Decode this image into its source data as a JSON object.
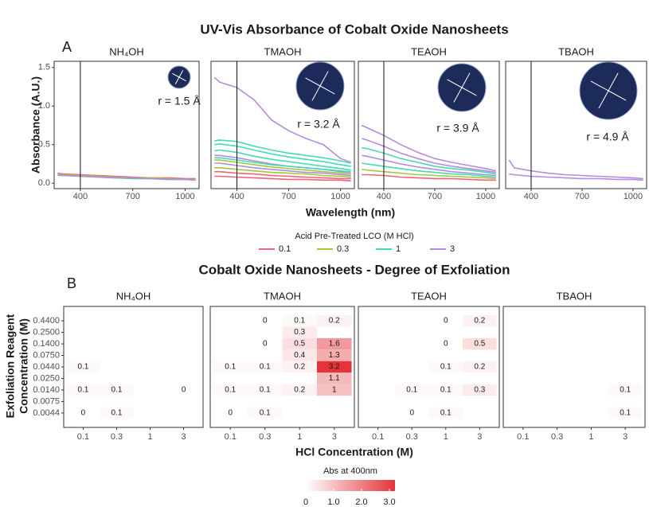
{
  "chart_data": [
    {
      "type": "line",
      "panel_label": "A",
      "title": "UV-Vis Absorbance of Cobalt Oxide Nanosheets",
      "x_label": "Wavelength (nm)",
      "y_label": "Absorbance (A.U.)",
      "xlim": [
        250,
        1080
      ],
      "xticks": [
        400,
        700,
        1000
      ],
      "ylim": [
        -0.07,
        1.58
      ],
      "yticks": [
        {
          "value": 0,
          "label": "0.0"
        },
        {
          "value": 0.5,
          "label": "0.5"
        },
        {
          "value": 1,
          "label": "1.0"
        },
        {
          "value": 1.5,
          "label": "1.5"
        }
      ],
      "vline": 400,
      "x": [
        270,
        300,
        400,
        500,
        600,
        700,
        800,
        900,
        1000,
        1060
      ],
      "legend": {
        "title": "Acid Pre-Treated LCO (M HCl)",
        "entries": [
          {
            "name": "0.1",
            "color": "#f0637a"
          },
          {
            "name": "0.3",
            "color": "#a3c83a"
          },
          {
            "name": "1",
            "color": "#45d9b8"
          },
          {
            "name": "3",
            "color": "#b48be0"
          }
        ]
      },
      "facets": [
        {
          "name": "NH₄OH",
          "annotation": "r = 1.5 Å",
          "series": [
            {
              "group": 0,
              "values": [
                0.13,
                0.12,
                0.11,
                0.1,
                0.09,
                0.08,
                0.07,
                0.07,
                0.06,
                0.06
              ]
            },
            {
              "group": 1,
              "values": [
                0.12,
                0.11,
                0.1,
                0.09,
                0.08,
                0.07,
                0.07,
                0.06,
                0.05,
                0.05
              ]
            },
            {
              "group": 2,
              "values": [
                0.1,
                0.1,
                0.09,
                0.08,
                0.07,
                0.06,
                0.06,
                0.05,
                0.05,
                0.04
              ]
            },
            {
              "group": 3,
              "values": [
                0.11,
                0.1,
                0.09,
                0.08,
                0.07,
                0.07,
                0.06,
                0.05,
                0.05,
                0.04
              ]
            }
          ]
        },
        {
          "name": "TMAOH",
          "annotation": "r = 3.2 Å",
          "series": [
            {
              "group": 3,
              "values": [
                1.37,
                1.31,
                1.24,
                1.08,
                0.82,
                0.68,
                0.58,
                0.5,
                0.32,
                0.27
              ]
            },
            {
              "group": 2,
              "values": [
                0.55,
                0.56,
                0.54,
                0.48,
                0.43,
                0.39,
                0.36,
                0.33,
                0.29,
                0.26
              ]
            },
            {
              "group": 2,
              "values": [
                0.5,
                0.51,
                0.48,
                0.43,
                0.38,
                0.34,
                0.31,
                0.28,
                0.24,
                0.22
              ]
            },
            {
              "group": 2,
              "values": [
                0.42,
                0.43,
                0.4,
                0.35,
                0.31,
                0.28,
                0.25,
                0.22,
                0.19,
                0.17
              ]
            },
            {
              "group": 3,
              "values": [
                0.36,
                0.36,
                0.33,
                0.29,
                0.25,
                0.22,
                0.2,
                0.18,
                0.15,
                0.14
              ]
            },
            {
              "group": 2,
              "values": [
                0.33,
                0.33,
                0.3,
                0.27,
                0.24,
                0.22,
                0.2,
                0.18,
                0.16,
                0.15
              ]
            },
            {
              "group": 1,
              "values": [
                0.3,
                0.3,
                0.27,
                0.24,
                0.21,
                0.19,
                0.17,
                0.15,
                0.13,
                0.12
              ]
            },
            {
              "group": 3,
              "values": [
                0.26,
                0.26,
                0.23,
                0.2,
                0.18,
                0.16,
                0.14,
                0.13,
                0.11,
                0.1
              ]
            },
            {
              "group": 1,
              "values": [
                0.2,
                0.2,
                0.18,
                0.16,
                0.14,
                0.13,
                0.12,
                0.1,
                0.09,
                0.08
              ]
            },
            {
              "group": 0,
              "values": [
                0.15,
                0.15,
                0.13,
                0.12,
                0.1,
                0.09,
                0.08,
                0.07,
                0.06,
                0.06
              ]
            },
            {
              "group": 0,
              "values": [
                0.09,
                0.09,
                0.08,
                0.07,
                0.06,
                0.05,
                0.05,
                0.04,
                0.04,
                0.03
              ]
            }
          ]
        },
        {
          "name": "TEAOH",
          "annotation": "r = 3.9 Å",
          "series": [
            {
              "group": 3,
              "values": [
                0.75,
                0.72,
                0.62,
                0.5,
                0.4,
                0.32,
                0.27,
                0.23,
                0.19,
                0.16
              ]
            },
            {
              "group": 3,
              "values": [
                0.58,
                0.56,
                0.48,
                0.39,
                0.32,
                0.26,
                0.22,
                0.19,
                0.16,
                0.14
              ]
            },
            {
              "group": 2,
              "values": [
                0.46,
                0.45,
                0.39,
                0.32,
                0.27,
                0.22,
                0.19,
                0.17,
                0.14,
                0.12
              ]
            },
            {
              "group": 3,
              "values": [
                0.36,
                0.35,
                0.3,
                0.25,
                0.21,
                0.18,
                0.15,
                0.13,
                0.11,
                0.1
              ]
            },
            {
              "group": 2,
              "values": [
                0.26,
                0.25,
                0.22,
                0.19,
                0.16,
                0.14,
                0.12,
                0.11,
                0.09,
                0.08
              ]
            },
            {
              "group": 1,
              "values": [
                0.18,
                0.17,
                0.15,
                0.13,
                0.11,
                0.1,
                0.09,
                0.08,
                0.07,
                0.06
              ]
            },
            {
              "group": 0,
              "values": [
                0.11,
                0.11,
                0.1,
                0.08,
                0.07,
                0.06,
                0.06,
                0.05,
                0.04,
                0.04
              ]
            }
          ]
        },
        {
          "name": "TBAOH",
          "annotation": "r = 4.9 Å",
          "series": [
            {
              "group": 3,
              "values": [
                0.3,
                0.2,
                0.16,
                0.13,
                0.11,
                0.1,
                0.09,
                0.08,
                0.07,
                0.06
              ]
            },
            {
              "group": 3,
              "values": [
                0.12,
                0.11,
                0.09,
                0.08,
                0.07,
                0.06,
                0.06,
                0.05,
                0.05,
                0.04
              ]
            }
          ]
        }
      ]
    },
    {
      "type": "heatmap",
      "panel_label": "B",
      "title": "Cobalt Oxide Nanosheets - Degree of Exfoliation",
      "x_label": "HCl Concentration (M)",
      "y_label": [
        "Exfoliation Reagent",
        "Concentration (M)"
      ],
      "categories": [
        "0.1",
        "0.3",
        "1",
        "3"
      ],
      "y_categories": [
        "0.4400",
        "0.2500",
        "0.1400",
        "0.0750",
        "0.0440",
        "0.0250",
        "0.0140",
        "0.0075",
        "0.0044"
      ],
      "colorbar": {
        "title": "Abs at 400nm",
        "lim": [
          0,
          3.2
        ],
        "colors": [
          "#ffffff",
          "#e3343a"
        ],
        "ticks": [
          0,
          {
            "value": 1,
            "label": "1.0"
          },
          {
            "value": 2,
            "label": "2.0"
          },
          {
            "value": 3,
            "label": "3.0"
          }
        ]
      },
      "facets": [
        {
          "name": "NH₄OH",
          "cells": [
            {
              "x": 0,
              "y": 4,
              "value": 0.1
            },
            {
              "x": 0,
              "y": 6,
              "value": 0.1
            },
            {
              "x": 1,
              "y": 6,
              "value": 0.1
            },
            {
              "x": 3,
              "y": 6,
              "value": 0
            },
            {
              "x": 0,
              "y": 8,
              "value": 0
            },
            {
              "x": 1,
              "y": 8,
              "value": 0.1
            }
          ]
        },
        {
          "name": "TMAOH",
          "cells": [
            {
              "x": 1,
              "y": 0,
              "value": 0
            },
            {
              "x": 2,
              "y": 0,
              "value": 0.1
            },
            {
              "x": 3,
              "y": 0,
              "value": 0.2
            },
            {
              "x": 2,
              "y": 1,
              "value": 0.3
            },
            {
              "x": 1,
              "y": 2,
              "value": 0
            },
            {
              "x": 2,
              "y": 2,
              "value": 0.5
            },
            {
              "x": 3,
              "y": 2,
              "value": 1.6
            },
            {
              "x": 2,
              "y": 3,
              "value": 0.4
            },
            {
              "x": 3,
              "y": 3,
              "value": 1.3
            },
            {
              "x": 0,
              "y": 4,
              "value": 0.1
            },
            {
              "x": 1,
              "y": 4,
              "value": 0.1
            },
            {
              "x": 2,
              "y": 4,
              "value": 0.2
            },
            {
              "x": 3,
              "y": 4,
              "value": 3.2
            },
            {
              "x": 3,
              "y": 5,
              "value": 1.1
            },
            {
              "x": 0,
              "y": 6,
              "value": 0.1
            },
            {
              "x": 1,
              "y": 6,
              "value": 0.1
            },
            {
              "x": 2,
              "y": 6,
              "value": 0.2
            },
            {
              "x": 3,
              "y": 6,
              "value": 1
            },
            {
              "x": 0,
              "y": 8,
              "value": 0
            },
            {
              "x": 1,
              "y": 8,
              "value": 0.1
            }
          ]
        },
        {
          "name": "TEAOH",
          "cells": [
            {
              "x": 2,
              "y": 0,
              "value": 0
            },
            {
              "x": 3,
              "y": 0,
              "value": 0.2
            },
            {
              "x": 2,
              "y": 2,
              "value": 0
            },
            {
              "x": 3,
              "y": 2,
              "value": 0.5
            },
            {
              "x": 2,
              "y": 4,
              "value": 0.1
            },
            {
              "x": 3,
              "y": 4,
              "value": 0.2
            },
            {
              "x": 1,
              "y": 6,
              "value": 0.1
            },
            {
              "x": 2,
              "y": 6,
              "value": 0.1
            },
            {
              "x": 3,
              "y": 6,
              "value": 0.3
            },
            {
              "x": 1,
              "y": 8,
              "value": 0
            },
            {
              "x": 2,
              "y": 8,
              "value": 0.1
            }
          ]
        },
        {
          "name": "TBAOH",
          "cells": [
            {
              "x": 3,
              "y": 6,
              "value": 0.1
            },
            {
              "x": 3,
              "y": 8,
              "value": 0.1
            }
          ]
        }
      ]
    }
  ]
}
